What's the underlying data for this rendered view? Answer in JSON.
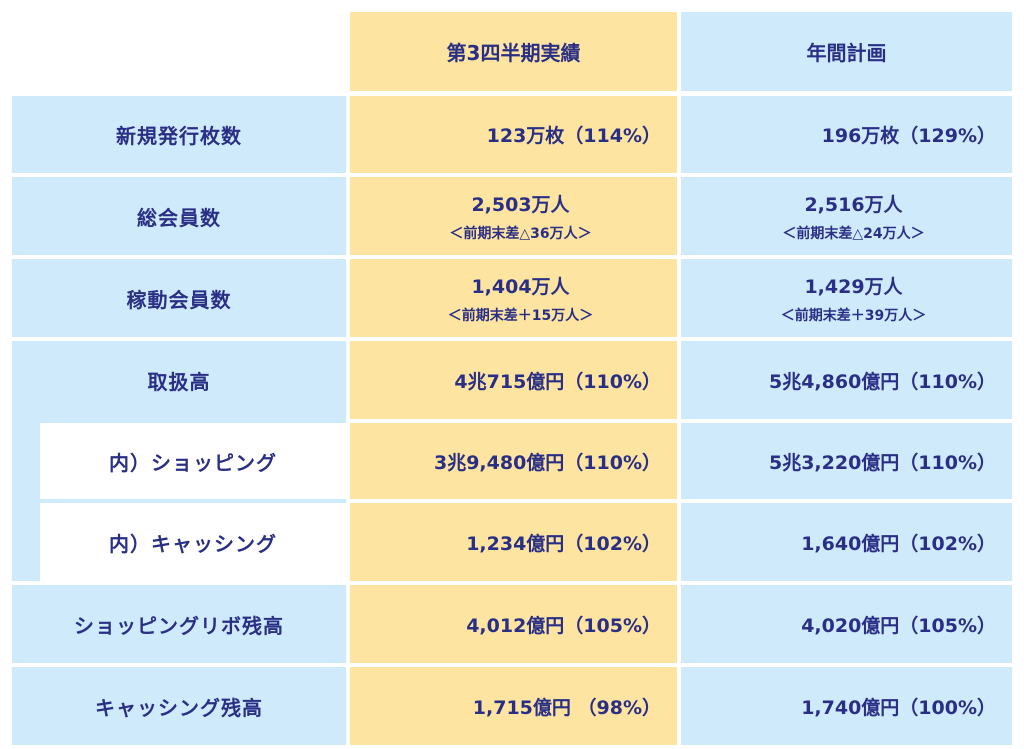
{
  "headers": {
    "q3": "第3四半期実績",
    "plan": "年間計画"
  },
  "rows": [
    {
      "label": "新規発行枚数",
      "q3": "123万枚（114%）",
      "plan": "196万枚（129%）"
    },
    {
      "label": "総会員数",
      "q3": "2,503万人",
      "q3_sub": "＜前期末差△36万人＞",
      "plan": "2,516万人",
      "plan_sub": "＜前期末差△24万人＞"
    },
    {
      "label": "稼動会員数",
      "q3": "1,404万人",
      "q3_sub": "＜前期末差＋15万人＞",
      "plan": "1,429万人",
      "plan_sub": "＜前期末差＋39万人＞"
    },
    {
      "label": "取扱高",
      "q3": "4兆715億円（110%）",
      "plan": "5兆4,860億円（110%）"
    },
    {
      "label": "内）ショッピング",
      "q3": "3兆9,480億円（110%）",
      "plan": "5兆3,220億円（110%）"
    },
    {
      "label": "内）キャッシング",
      "q3": "1,234億円（102%）",
      "plan": "1,640億円（102%）"
    },
    {
      "label": "ショッピングリボ残高",
      "q3": "4,012億円（105%）",
      "plan": "4,020億円（105%）"
    },
    {
      "label": "キャッシング残高",
      "q3": "1,715億円 （98%）",
      "plan": "1,740億円（100%）"
    }
  ]
}
